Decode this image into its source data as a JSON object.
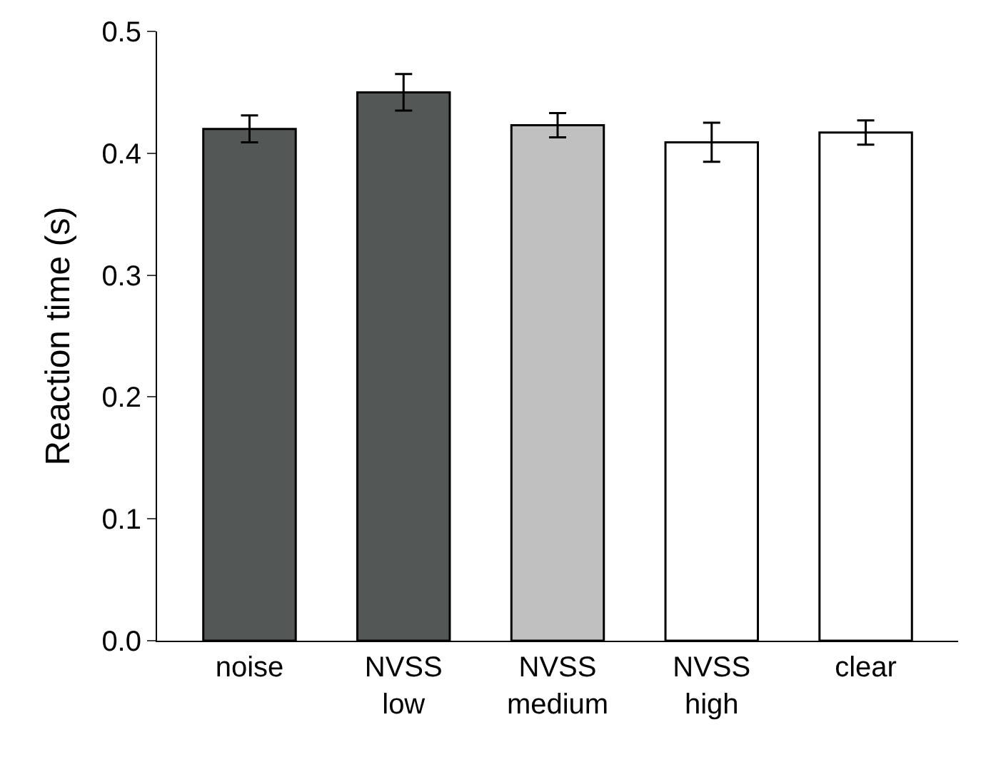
{
  "chart_data": {
    "type": "bar",
    "ylabel": "Reaction time (s)",
    "categories": [
      "noise",
      "NVSS\nlow",
      "NVSS\nmedium",
      "NVSS\nhigh",
      "clear"
    ],
    "values": [
      0.42,
      0.45,
      0.423,
      0.409,
      0.417
    ],
    "errors": [
      0.011,
      0.015,
      0.01,
      0.016,
      0.01
    ],
    "colors": [
      "#535857",
      "#535857",
      "#c0c0c0",
      "#ffffff",
      "#ffffff"
    ],
    "ylim": [
      0,
      0.5
    ],
    "yticks": [
      {
        "value": 0,
        "label": "0.0"
      },
      0.1,
      0.2,
      0.3,
      0.4,
      0.5
    ],
    "grid": false
  }
}
